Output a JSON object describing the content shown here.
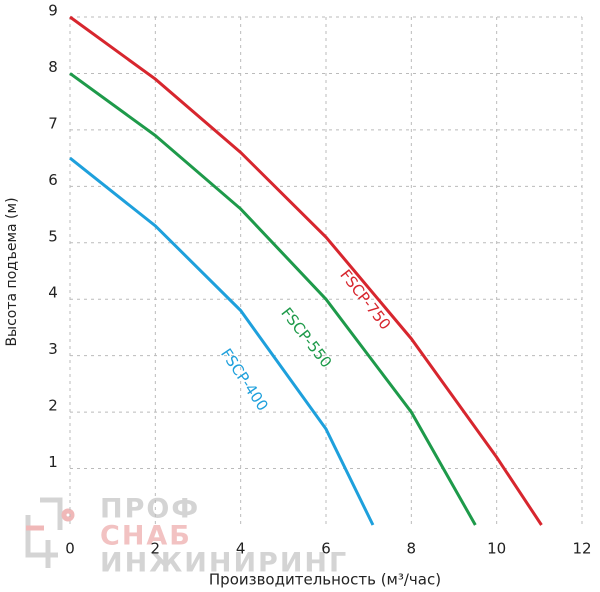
{
  "chart_data": {
    "type": "line",
    "x_label": "Производительность (м³/час)",
    "y_label": "Высота подъема (м)",
    "xlim": [
      0,
      12
    ],
    "xticks": [
      0,
      2,
      4,
      6,
      8,
      10,
      12
    ],
    "ylim": [
      0,
      9
    ],
    "yticks": [
      1,
      2,
      3,
      4,
      5,
      6,
      7,
      8,
      9
    ],
    "grid": true,
    "series": [
      {
        "name": "FSCP-750",
        "color": "#d7262e",
        "x": [
          0,
          2,
          4,
          6,
          8,
          10,
          11.05
        ],
        "values": [
          9,
          7.9,
          6.6,
          5.1,
          3.3,
          1.2,
          0
        ]
      },
      {
        "name": "FSCP-550",
        "color": "#1e9a4a",
        "x": [
          0,
          2,
          4,
          6,
          8,
          9.5
        ],
        "values": [
          8,
          6.9,
          5.6,
          4.0,
          2.0,
          0
        ]
      },
      {
        "name": "FSCP-400",
        "color": "#1ea0dc",
        "x": [
          0,
          2,
          4,
          6,
          7.1
        ],
        "values": [
          6.5,
          5.3,
          3.8,
          1.7,
          0
        ]
      }
    ]
  },
  "watermark": {
    "lines": [
      "ПРОФ",
      "СНАБ",
      "ИНЖИНИРИНГ"
    ]
  }
}
